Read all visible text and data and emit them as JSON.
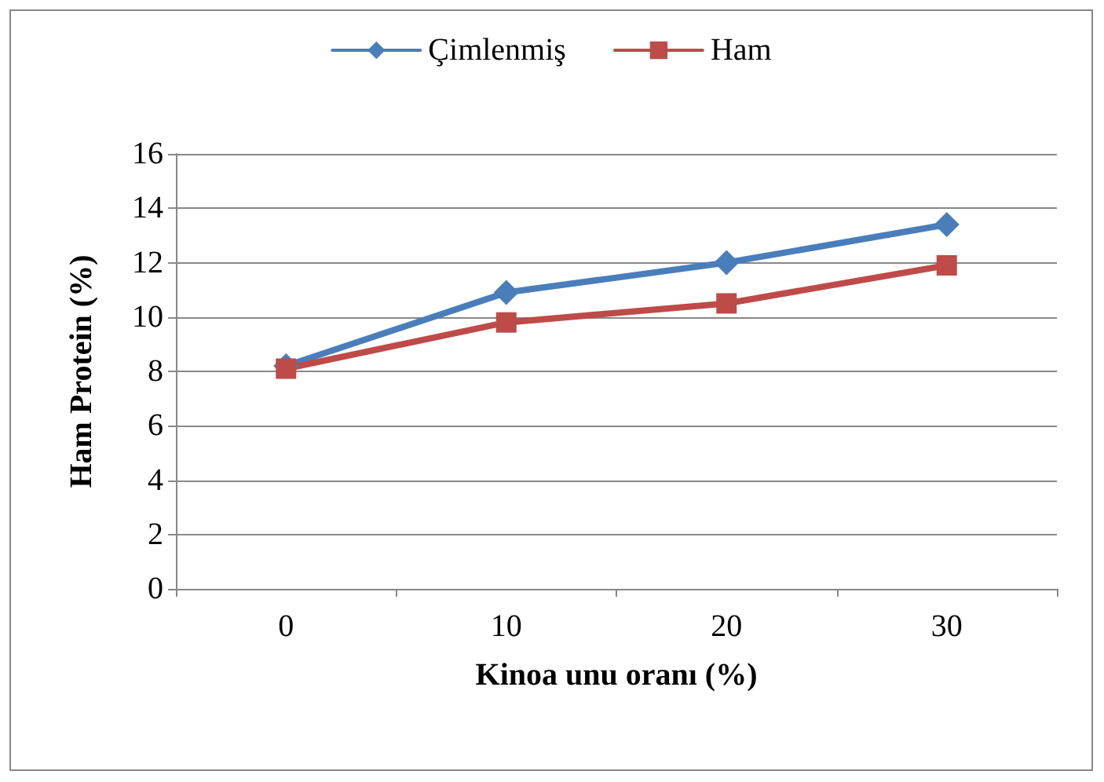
{
  "chart_data": {
    "type": "line",
    "xlabel": "Kinoa unu oranı (%)",
    "ylabel": "Ham Protein (%)",
    "categories": [
      "0",
      "10",
      "20",
      "30"
    ],
    "series": [
      {
        "name": "Çimlenmiş",
        "color": "#4a7ebb",
        "marker": "diamond",
        "values": [
          8.2,
          10.9,
          12.0,
          13.4
        ]
      },
      {
        "name": "Ham",
        "color": "#be4b48",
        "marker": "square",
        "values": [
          8.1,
          9.8,
          10.5,
          11.9
        ]
      }
    ],
    "ylim": [
      0,
      16
    ],
    "yticks": [
      0,
      2,
      4,
      6,
      8,
      10,
      12,
      14,
      16
    ],
    "grid": "y",
    "legend": "top"
  }
}
